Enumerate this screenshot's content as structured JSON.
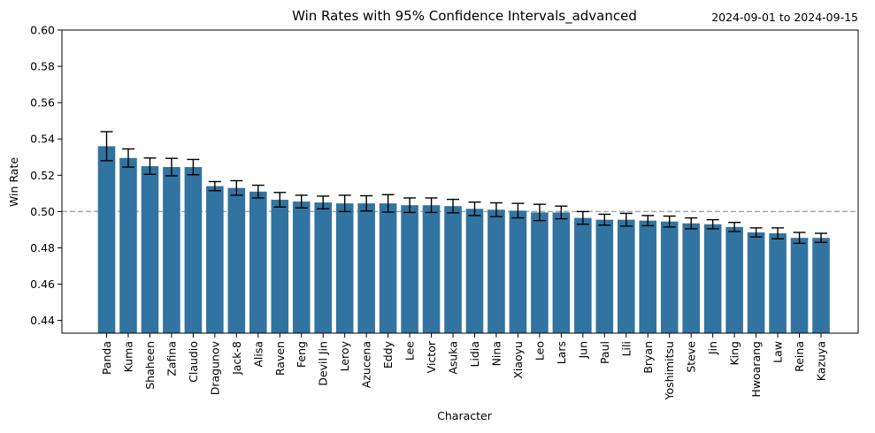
{
  "chart_data": {
    "type": "bar",
    "title": "Win Rates with 95% Confidence Intervals_advanced",
    "date_range": "2024-09-01 to 2024-09-15",
    "xlabel": "Character",
    "ylabel": "Win Rate",
    "ylim": [
      0.433,
      0.6
    ],
    "yticks": [
      "0.44",
      "0.46",
      "0.48",
      "0.50",
      "0.52",
      "0.54",
      "0.56",
      "0.58",
      "0.60"
    ],
    "reference_line": 0.5,
    "bar_color": "#3274a1",
    "categories": [
      "Panda",
      "Kuma",
      "Shaheen",
      "Zafina",
      "Claudio",
      "Dragunov",
      "Jack-8",
      "Alisa",
      "Raven",
      "Feng",
      "Devil Jin",
      "Leroy",
      "Azucena",
      "Eddy",
      "Lee",
      "Victor",
      "Asuka",
      "Lidia",
      "Nina",
      "Xiaoyu",
      "Leo",
      "Lars",
      "Jun",
      "Paul",
      "Lili",
      "Bryan",
      "Yoshimitsu",
      "Steve",
      "Jin",
      "King",
      "Hwoarang",
      "Law",
      "Reina",
      "Kazuya"
    ],
    "values": [
      0.536,
      0.5295,
      0.525,
      0.5245,
      0.5245,
      0.514,
      0.513,
      0.511,
      0.5065,
      0.5055,
      0.505,
      0.5045,
      0.5045,
      0.5045,
      0.5035,
      0.5035,
      0.503,
      0.5015,
      0.501,
      0.5005,
      0.4995,
      0.4995,
      0.4965,
      0.4955,
      0.4955,
      0.495,
      0.4945,
      0.4935,
      0.493,
      0.4915,
      0.4885,
      0.488,
      0.4855,
      0.4855
    ],
    "errors": [
      0.008,
      0.005,
      0.0045,
      0.0048,
      0.0042,
      0.0025,
      0.004,
      0.0035,
      0.004,
      0.0035,
      0.0035,
      0.0045,
      0.0042,
      0.0048,
      0.004,
      0.004,
      0.0037,
      0.0037,
      0.0038,
      0.004,
      0.0045,
      0.0035,
      0.0035,
      0.003,
      0.0035,
      0.0028,
      0.003,
      0.003,
      0.0025,
      0.0025,
      0.0025,
      0.003,
      0.003,
      0.0025
    ]
  }
}
